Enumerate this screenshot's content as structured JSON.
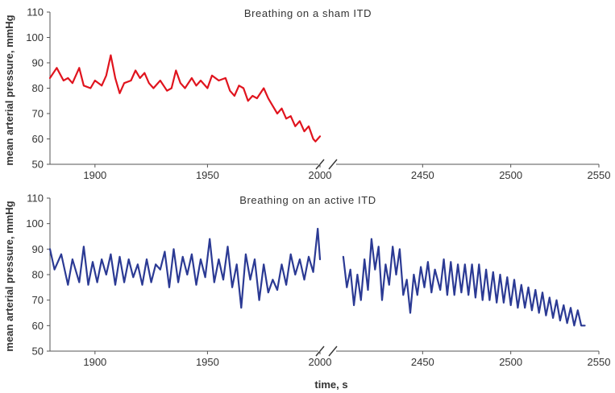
{
  "chart_data": [
    {
      "type": "line",
      "title": "Breathing on a sham ITD",
      "ylabel": "mean arterial pressure, mmHg",
      "xlabel": "",
      "ylim": [
        50,
        110
      ],
      "yticks": [
        50,
        60,
        70,
        80,
        90,
        100,
        110
      ],
      "xticks": [
        1900,
        1950,
        2000,
        2450,
        2500,
        2550
      ],
      "axis_break": "2000 // 2400",
      "color": "#e0141e",
      "series": [
        {
          "x": [
            1880,
            1883,
            1886,
            1888,
            1890,
            1893,
            1895,
            1898,
            1900,
            1903,
            1905,
            1907,
            1909,
            1911,
            1913,
            1916,
            1918,
            1920,
            1922,
            1924,
            1926,
            1929,
            1932,
            1934,
            1936,
            1938,
            1940,
            1943,
            1945,
            1947,
            1950,
            1952,
            1955,
            1958,
            1960,
            1962,
            1964,
            1966,
            1968,
            1970,
            1972,
            1975,
            1977,
            1979,
            1981,
            1983,
            1985,
            1987,
            1989,
            1991,
            1993,
            1995,
            1997,
            1998,
            1999,
            2000
          ],
          "y": [
            84,
            88,
            83,
            84,
            82,
            88,
            81,
            80,
            83,
            81,
            85,
            93,
            84,
            78,
            82,
            83,
            87,
            84,
            86,
            82,
            80,
            83,
            79,
            80,
            87,
            82,
            80,
            84,
            81,
            83,
            80,
            85,
            83,
            84,
            79,
            77,
            81,
            80,
            75,
            77,
            76,
            80,
            76,
            73,
            70,
            72,
            68,
            69,
            65,
            67,
            63,
            65,
            60,
            59,
            60,
            61
          ]
        }
      ]
    },
    {
      "type": "line",
      "title": "Breathing on an active ITD",
      "ylabel": "mean arterial pressure, mmHg",
      "xlabel": "time, s",
      "ylim": [
        50,
        110
      ],
      "yticks": [
        50,
        60,
        70,
        80,
        90,
        100,
        110
      ],
      "xticks": [
        1900,
        1950,
        2000,
        2450,
        2500,
        2550
      ],
      "axis_break": "2000 // 2400",
      "color": "#2b3a94",
      "series": [
        {
          "x": [
            1880,
            1882,
            1885,
            1888,
            1890,
            1893,
            1895,
            1897,
            1899,
            1901,
            1903,
            1905,
            1907,
            1909,
            1911,
            1913,
            1915,
            1917,
            1919,
            1921,
            1923,
            1925,
            1927,
            1929,
            1931,
            1933,
            1935,
            1937,
            1939,
            1941,
            1943,
            1945,
            1947,
            1949,
            1951,
            1953,
            1955,
            1957,
            1959,
            1961,
            1963,
            1965,
            1967,
            1969,
            1971,
            1973,
            1975,
            1977,
            1979,
            1981,
            1983,
            1985,
            1987,
            1989,
            1991,
            1993,
            1995,
            1997,
            1999,
            2000
          ],
          "y": [
            90,
            82,
            88,
            76,
            86,
            77,
            91,
            76,
            85,
            77,
            86,
            80,
            88,
            76,
            87,
            77,
            86,
            79,
            84,
            76,
            86,
            77,
            84,
            82,
            89,
            75,
            90,
            77,
            87,
            80,
            88,
            76,
            86,
            79,
            94,
            77,
            86,
            78,
            91,
            75,
            84,
            67,
            88,
            78,
            86,
            70,
            84,
            73,
            78,
            74,
            84,
            76,
            88,
            80,
            86,
            78,
            87,
            81,
            98,
            86
          ]
        },
        {
          "x": [
            2405,
            2407,
            2409,
            2411,
            2413,
            2415,
            2417,
            2419,
            2421,
            2423,
            2425,
            2427,
            2429,
            2431,
            2433,
            2435,
            2437,
            2439,
            2441,
            2443,
            2445,
            2447,
            2449,
            2451,
            2453,
            2455,
            2457,
            2460,
            2462,
            2464,
            2466,
            2468,
            2470,
            2472,
            2474,
            2476,
            2478,
            2480,
            2482,
            2484,
            2486,
            2488,
            2490,
            2492,
            2494,
            2496,
            2498,
            2500,
            2502,
            2504,
            2506,
            2508,
            2510,
            2512,
            2514,
            2516,
            2518,
            2520,
            2522,
            2524,
            2526,
            2528,
            2530,
            2532,
            2534,
            2536,
            2538,
            2540,
            2542
          ],
          "y": [
            87,
            75,
            82,
            68,
            80,
            70,
            86,
            74,
            94,
            82,
            91,
            70,
            84,
            76,
            91,
            80,
            90,
            72,
            78,
            65,
            80,
            72,
            83,
            75,
            85,
            73,
            82,
            74,
            86,
            72,
            85,
            72,
            84,
            73,
            84,
            72,
            84,
            71,
            84,
            70,
            82,
            70,
            81,
            69,
            80,
            69,
            79,
            68,
            78,
            67,
            76,
            67,
            75,
            66,
            74,
            65,
            73,
            64,
            71,
            63,
            70,
            62,
            68,
            61,
            67,
            60,
            66,
            60,
            60
          ]
        }
      ]
    }
  ]
}
